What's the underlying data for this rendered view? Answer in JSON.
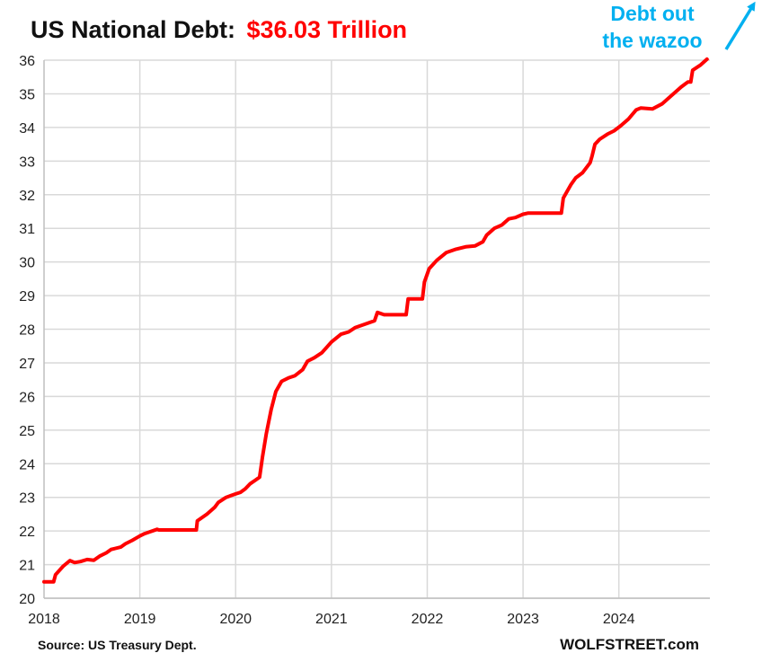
{
  "chart_data": {
    "type": "line",
    "title": "US National Debt:",
    "title_value": "$36.03 Trillion",
    "xlabel": "",
    "ylabel": "",
    "x_ticks": [
      "2018",
      "2019",
      "2020",
      "2021",
      "2022",
      "2023",
      "2024"
    ],
    "y_ticks": [
      20,
      21,
      22,
      23,
      24,
      25,
      26,
      27,
      28,
      29,
      30,
      31,
      32,
      33,
      34,
      35,
      36
    ],
    "xlim": [
      2018.0,
      2024.95
    ],
    "ylim": [
      20,
      36
    ],
    "grid": true,
    "legend": "none",
    "series": [
      {
        "color": "#ff0000",
        "points": [
          [
            2018.0,
            20.49
          ],
          [
            2018.1,
            20.49
          ],
          [
            2018.12,
            20.7
          ],
          [
            2018.2,
            20.95
          ],
          [
            2018.27,
            21.12
          ],
          [
            2018.32,
            21.06
          ],
          [
            2018.38,
            21.09
          ],
          [
            2018.45,
            21.15
          ],
          [
            2018.52,
            21.13
          ],
          [
            2018.58,
            21.25
          ],
          [
            2018.65,
            21.35
          ],
          [
            2018.7,
            21.45
          ],
          [
            2018.8,
            21.52
          ],
          [
            2018.85,
            21.62
          ],
          [
            2018.92,
            21.72
          ],
          [
            2019.0,
            21.85
          ],
          [
            2019.05,
            21.92
          ],
          [
            2019.1,
            21.97
          ],
          [
            2019.18,
            22.05
          ],
          [
            2019.2,
            22.03
          ],
          [
            2019.59,
            22.03
          ],
          [
            2019.6,
            22.3
          ],
          [
            2019.7,
            22.5
          ],
          [
            2019.78,
            22.7
          ],
          [
            2019.82,
            22.85
          ],
          [
            2019.9,
            23.0
          ],
          [
            2019.95,
            23.05
          ],
          [
            2020.0,
            23.1
          ],
          [
            2020.05,
            23.15
          ],
          [
            2020.1,
            23.25
          ],
          [
            2020.15,
            23.4
          ],
          [
            2020.2,
            23.5
          ],
          [
            2020.25,
            23.6
          ],
          [
            2020.28,
            24.2
          ],
          [
            2020.32,
            24.9
          ],
          [
            2020.37,
            25.6
          ],
          [
            2020.42,
            26.15
          ],
          [
            2020.48,
            26.45
          ],
          [
            2020.55,
            26.55
          ],
          [
            2020.62,
            26.62
          ],
          [
            2020.7,
            26.8
          ],
          [
            2020.75,
            27.05
          ],
          [
            2020.82,
            27.15
          ],
          [
            2020.9,
            27.3
          ],
          [
            2021.0,
            27.62
          ],
          [
            2021.1,
            27.85
          ],
          [
            2021.18,
            27.92
          ],
          [
            2021.25,
            28.05
          ],
          [
            2021.35,
            28.15
          ],
          [
            2021.45,
            28.25
          ],
          [
            2021.48,
            28.5
          ],
          [
            2021.55,
            28.43
          ],
          [
            2021.78,
            28.43
          ],
          [
            2021.8,
            28.9
          ],
          [
            2021.95,
            28.9
          ],
          [
            2021.97,
            29.4
          ],
          [
            2022.02,
            29.8
          ],
          [
            2022.1,
            30.05
          ],
          [
            2022.2,
            30.28
          ],
          [
            2022.3,
            30.38
          ],
          [
            2022.4,
            30.45
          ],
          [
            2022.5,
            30.48
          ],
          [
            2022.58,
            30.6
          ],
          [
            2022.62,
            30.8
          ],
          [
            2022.7,
            31.0
          ],
          [
            2022.78,
            31.1
          ],
          [
            2022.85,
            31.28
          ],
          [
            2022.92,
            31.32
          ],
          [
            2023.0,
            31.42
          ],
          [
            2023.05,
            31.45
          ],
          [
            2023.4,
            31.45
          ],
          [
            2023.42,
            31.9
          ],
          [
            2023.5,
            32.3
          ],
          [
            2023.55,
            32.5
          ],
          [
            2023.62,
            32.65
          ],
          [
            2023.7,
            32.95
          ],
          [
            2023.72,
            33.15
          ],
          [
            2023.75,
            33.5
          ],
          [
            2023.8,
            33.65
          ],
          [
            2023.88,
            33.8
          ],
          [
            2023.95,
            33.9
          ],
          [
            2024.02,
            34.05
          ],
          [
            2024.1,
            34.25
          ],
          [
            2024.18,
            34.52
          ],
          [
            2024.23,
            34.58
          ],
          [
            2024.35,
            34.55
          ],
          [
            2024.45,
            34.7
          ],
          [
            2024.55,
            34.95
          ],
          [
            2024.65,
            35.2
          ],
          [
            2024.72,
            35.35
          ],
          [
            2024.75,
            35.35
          ],
          [
            2024.77,
            35.7
          ],
          [
            2024.85,
            35.85
          ],
          [
            2024.92,
            36.03
          ]
        ]
      }
    ],
    "annotation": {
      "line1": "Debt out",
      "line2": "the wazoo",
      "color": "#00b0f0"
    },
    "source": "Source: US Treasury Dept.",
    "brand": "WOLFSTREET.com"
  }
}
